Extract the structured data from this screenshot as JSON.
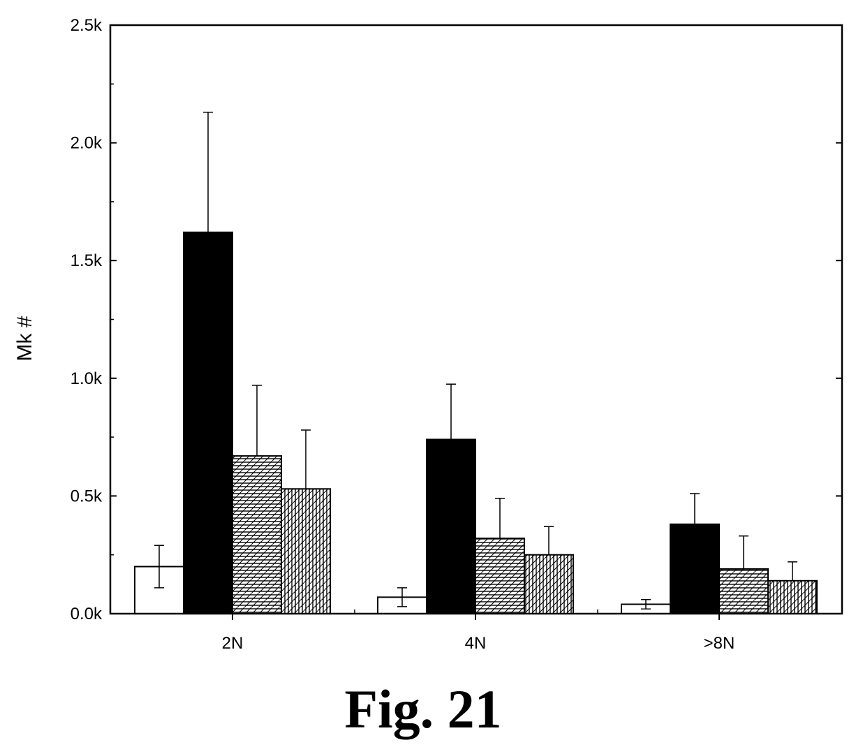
{
  "figure": {
    "caption": "Fig. 21"
  },
  "chart_data": {
    "type": "bar",
    "categories": [
      "2N",
      "4N",
      ">8N"
    ],
    "ylabel": "Mk #",
    "xlabel": "",
    "ylim": [
      0,
      2500
    ],
    "yticks": [
      0,
      500,
      1000,
      1500,
      2000,
      2500
    ],
    "ytick_labels": [
      "0.0k",
      "0.5k",
      "1.0k",
      "1.5k",
      "2.0k",
      "2.5k"
    ],
    "series": [
      {
        "values": [
          200,
          70,
          40
        ],
        "errors": [
          90,
          40,
          20
        ],
        "fill": "white"
      },
      {
        "values": [
          1620,
          740,
          380
        ],
        "errors": [
          510,
          235,
          130
        ],
        "fill": "black"
      },
      {
        "values": [
          670,
          320,
          190
        ],
        "errors": [
          300,
          170,
          140
        ],
        "fill": "horizontal-diagonal-hatch"
      },
      {
        "values": [
          530,
          250,
          140
        ],
        "errors": [
          250,
          120,
          80
        ],
        "fill": "vertical-diagonal-hatch"
      }
    ]
  }
}
